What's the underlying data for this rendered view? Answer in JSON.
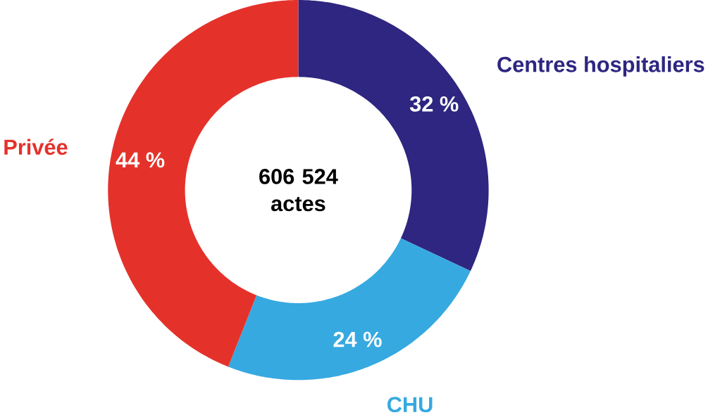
{
  "chart_data": {
    "type": "donut",
    "categories": [
      "Centres hospitaliers",
      "CHU",
      "Privée"
    ],
    "values": [
      32,
      24,
      44
    ],
    "colors": [
      "#2e2680",
      "#36a9e0",
      "#e4322b"
    ],
    "value_labels": [
      "32 %",
      "24 %",
      "44 %"
    ],
    "annotations": [
      "606 524 actes"
    ]
  }
}
